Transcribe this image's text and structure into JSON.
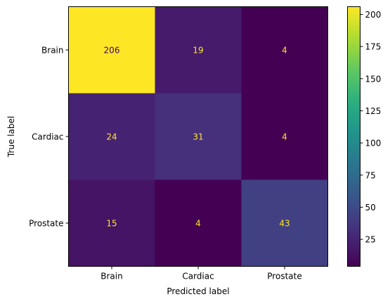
{
  "chart_data": {
    "type": "heatmap",
    "title": "",
    "xlabel": "Predicted label",
    "ylabel": "True label",
    "x_categories": [
      "Brain",
      "Cardiac",
      "Prostate"
    ],
    "y_categories": [
      "Brain",
      "Cardiac",
      "Prostate"
    ],
    "values": [
      [
        206,
        19,
        4
      ],
      [
        24,
        31,
        4
      ],
      [
        15,
        4,
        43
      ]
    ],
    "colormap": "viridis",
    "value_range": [
      4,
      206
    ],
    "colorbar_ticks": [
      25,
      50,
      75,
      100,
      125,
      150,
      175,
      200
    ],
    "grid": false,
    "annotation_colors": {
      "dark_cell": "#fde725",
      "light_cell": "#440154"
    }
  }
}
